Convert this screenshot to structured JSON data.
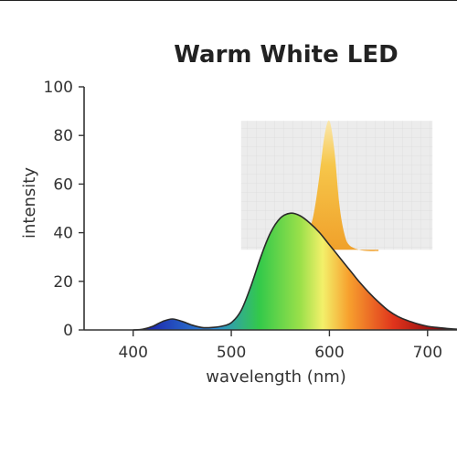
{
  "chart_data": {
    "type": "area",
    "title": "Warm White LED",
    "xlabel": "wavelength (nm)",
    "ylabel": "intensity",
    "xlim": [
      350,
      730
    ],
    "ylim": [
      0,
      100
    ],
    "x_ticks": [
      400,
      500,
      600,
      700
    ],
    "y_ticks": [
      0,
      20,
      40,
      60,
      80,
      100
    ],
    "grid": false,
    "series": [
      {
        "x": [
          400,
          410,
          420,
          430,
          440,
          450,
          460,
          470,
          480,
          490,
          500,
          510,
          520,
          530,
          540,
          550,
          560,
          570,
          580,
          590,
          600,
          610,
          620,
          630,
          640,
          650,
          660,
          670,
          680,
          690,
          700,
          710,
          720,
          730
        ],
        "values": [
          0,
          0.3,
          1.5,
          3.5,
          4.5,
          3.5,
          2,
          1,
          1,
          1.5,
          3,
          8,
          18,
          30,
          40,
          46,
          48,
          47,
          44,
          40,
          35,
          30,
          25,
          20,
          15.5,
          11.5,
          8,
          5.5,
          3.8,
          2.5,
          1.5,
          1,
          0.6,
          0.3
        ]
      }
    ],
    "inset": {
      "type": "area",
      "note_values_in_main_axis_units": true,
      "x": [
        545,
        560,
        570,
        580,
        585,
        590,
        595,
        600,
        605,
        610,
        615,
        620,
        630,
        640,
        650
      ],
      "values": [
        33,
        34,
        36,
        42,
        50,
        64,
        80,
        86,
        74,
        52,
        40,
        35,
        33,
        32.5,
        32.5
      ],
      "x_range": [
        510,
        705
      ],
      "y_range": [
        33,
        86
      ]
    }
  }
}
